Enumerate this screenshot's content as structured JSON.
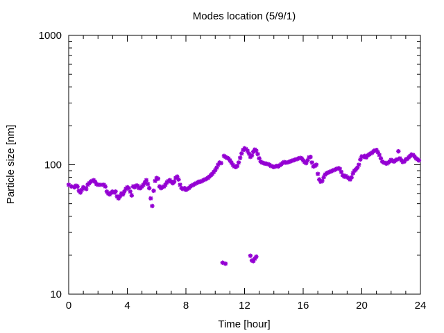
{
  "chart_data": {
    "type": "scatter",
    "title": "Modes location (5/9/1)",
    "xlabel": "Time [hour]",
    "ylabel": "Particle size [nm]",
    "xlim": [
      0,
      24
    ],
    "ylim": [
      10,
      1000
    ],
    "yscale": "log",
    "grid": false,
    "x_ticks": [
      0,
      4,
      8,
      12,
      16,
      20,
      24
    ],
    "x_tick_labels": [
      "0",
      "4",
      "8",
      "12",
      "16",
      "20",
      "24"
    ],
    "y_ticks": [
      10,
      100,
      1000
    ],
    "y_tick_labels": [
      "10",
      "100",
      "1000"
    ],
    "marker_color": "#9400d3",
    "points": [
      [
        0.0,
        70
      ],
      [
        0.2,
        68
      ],
      [
        0.4,
        67
      ],
      [
        0.5,
        69
      ],
      [
        0.6,
        68
      ],
      [
        0.7,
        63
      ],
      [
        0.8,
        61
      ],
      [
        0.9,
        64
      ],
      [
        1.0,
        67
      ],
      [
        1.1,
        66
      ],
      [
        1.2,
        65
      ],
      [
        1.3,
        70
      ],
      [
        1.4,
        72
      ],
      [
        1.5,
        74
      ],
      [
        1.6,
        75
      ],
      [
        1.7,
        76
      ],
      [
        1.8,
        74
      ],
      [
        1.9,
        71
      ],
      [
        2.0,
        70
      ],
      [
        2.2,
        70
      ],
      [
        2.4,
        70
      ],
      [
        2.5,
        68
      ],
      [
        2.6,
        62
      ],
      [
        2.7,
        60
      ],
      [
        2.8,
        59
      ],
      [
        2.9,
        61
      ],
      [
        3.0,
        62
      ],
      [
        3.1,
        61
      ],
      [
        3.2,
        62
      ],
      [
        3.3,
        57
      ],
      [
        3.4,
        55
      ],
      [
        3.5,
        57
      ],
      [
        3.6,
        60
      ],
      [
        3.7,
        59
      ],
      [
        3.8,
        62
      ],
      [
        3.9,
        65
      ],
      [
        4.0,
        67
      ],
      [
        4.1,
        66
      ],
      [
        4.2,
        62
      ],
      [
        4.3,
        58
      ],
      [
        4.4,
        68
      ],
      [
        4.5,
        67
      ],
      [
        4.6,
        69
      ],
      [
        4.7,
        69
      ],
      [
        4.8,
        66
      ],
      [
        4.9,
        66
      ],
      [
        5.0,
        68
      ],
      [
        5.1,
        70
      ],
      [
        5.2,
        73
      ],
      [
        5.3,
        76
      ],
      [
        5.4,
        71
      ],
      [
        5.5,
        66
      ],
      [
        5.6,
        55
      ],
      [
        5.7,
        48
      ],
      [
        5.8,
        63
      ],
      [
        5.9,
        75
      ],
      [
        6.0,
        79
      ],
      [
        6.1,
        78
      ],
      [
        6.2,
        68
      ],
      [
        6.3,
        66
      ],
      [
        6.4,
        67
      ],
      [
        6.5,
        68
      ],
      [
        6.6,
        70
      ],
      [
        6.7,
        73
      ],
      [
        6.8,
        75
      ],
      [
        6.9,
        76
      ],
      [
        7.0,
        74
      ],
      [
        7.1,
        72
      ],
      [
        7.2,
        74
      ],
      [
        7.3,
        79
      ],
      [
        7.4,
        81
      ],
      [
        7.5,
        77
      ],
      [
        7.6,
        70
      ],
      [
        7.7,
        66
      ],
      [
        7.8,
        65
      ],
      [
        7.9,
        66
      ],
      [
        8.0,
        64
      ],
      [
        8.1,
        65
      ],
      [
        8.2,
        66
      ],
      [
        8.3,
        68
      ],
      [
        8.4,
        69
      ],
      [
        8.5,
        70
      ],
      [
        8.6,
        71
      ],
      [
        8.7,
        72
      ],
      [
        8.8,
        73
      ],
      [
        8.9,
        74
      ],
      [
        9.0,
        74
      ],
      [
        9.1,
        75
      ],
      [
        9.2,
        76
      ],
      [
        9.3,
        77
      ],
      [
        9.4,
        78
      ],
      [
        9.5,
        79
      ],
      [
        9.6,
        81
      ],
      [
        9.7,
        83
      ],
      [
        9.8,
        85
      ],
      [
        9.9,
        88
      ],
      [
        10.0,
        91
      ],
      [
        10.1,
        95
      ],
      [
        10.2,
        100
      ],
      [
        10.3,
        104
      ],
      [
        10.4,
        103
      ],
      [
        10.6,
        117
      ],
      [
        10.7,
        115
      ],
      [
        10.8,
        113
      ],
      [
        10.9,
        112
      ],
      [
        11.0,
        108
      ],
      [
        11.1,
        104
      ],
      [
        11.2,
        100
      ],
      [
        11.3,
        97
      ],
      [
        11.4,
        96
      ],
      [
        11.5,
        98
      ],
      [
        11.6,
        104
      ],
      [
        11.7,
        113
      ],
      [
        11.8,
        122
      ],
      [
        11.9,
        130
      ],
      [
        12.0,
        134
      ],
      [
        12.1,
        132
      ],
      [
        12.2,
        128
      ],
      [
        12.3,
        122
      ],
      [
        12.4,
        115
      ],
      [
        12.5,
        118
      ],
      [
        12.6,
        126
      ],
      [
        12.7,
        131
      ],
      [
        12.8,
        128
      ],
      [
        12.9,
        121
      ],
      [
        13.0,
        112
      ],
      [
        13.1,
        106
      ],
      [
        13.2,
        104
      ],
      [
        13.3,
        103
      ],
      [
        13.4,
        102
      ],
      [
        13.5,
        102
      ],
      [
        13.6,
        101
      ],
      [
        13.7,
        100
      ],
      [
        13.8,
        98
      ],
      [
        13.9,
        97
      ],
      [
        14.0,
        96
      ],
      [
        14.1,
        97
      ],
      [
        14.2,
        98
      ],
      [
        14.3,
        97
      ],
      [
        14.4,
        99
      ],
      [
        14.5,
        101
      ],
      [
        14.6,
        103
      ],
      [
        14.7,
        105
      ],
      [
        14.8,
        104
      ],
      [
        14.9,
        104
      ],
      [
        15.0,
        105
      ],
      [
        15.1,
        106
      ],
      [
        15.2,
        107
      ],
      [
        15.3,
        108
      ],
      [
        15.4,
        109
      ],
      [
        15.5,
        110
      ],
      [
        15.6,
        111
      ],
      [
        15.7,
        112
      ],
      [
        15.8,
        113
      ],
      [
        15.9,
        112
      ],
      [
        16.0,
        108
      ],
      [
        16.1,
        105
      ],
      [
        16.2,
        103
      ],
      [
        16.3,
        108
      ],
      [
        16.4,
        114
      ],
      [
        16.5,
        115
      ],
      [
        16.6,
        104
      ],
      [
        16.7,
        97
      ],
      [
        16.8,
        98
      ],
      [
        16.9,
        100
      ],
      [
        17.0,
        85
      ],
      [
        17.1,
        77
      ],
      [
        17.2,
        74
      ],
      [
        17.3,
        75
      ],
      [
        17.4,
        80
      ],
      [
        17.5,
        84
      ],
      [
        17.6,
        86
      ],
      [
        17.7,
        87
      ],
      [
        17.8,
        88
      ],
      [
        17.9,
        89
      ],
      [
        18.0,
        90
      ],
      [
        18.1,
        91
      ],
      [
        18.2,
        92
      ],
      [
        18.3,
        93
      ],
      [
        18.4,
        94
      ],
      [
        18.5,
        93
      ],
      [
        18.6,
        88
      ],
      [
        18.7,
        83
      ],
      [
        18.8,
        81
      ],
      [
        18.9,
        82
      ],
      [
        19.0,
        80
      ],
      [
        19.1,
        79
      ],
      [
        19.2,
        77
      ],
      [
        19.3,
        80
      ],
      [
        19.4,
        86
      ],
      [
        19.5,
        90
      ],
      [
        19.6,
        92
      ],
      [
        19.7,
        95
      ],
      [
        19.8,
        100
      ],
      [
        19.9,
        110
      ],
      [
        20.0,
        116
      ],
      [
        20.1,
        115
      ],
      [
        20.2,
        117
      ],
      [
        20.3,
        114
      ],
      [
        20.4,
        118
      ],
      [
        20.5,
        120
      ],
      [
        20.6,
        122
      ],
      [
        20.7,
        124
      ],
      [
        20.8,
        127
      ],
      [
        20.9,
        129
      ],
      [
        21.0,
        130
      ],
      [
        21.1,
        125
      ],
      [
        21.2,
        119
      ],
      [
        21.3,
        112
      ],
      [
        21.4,
        106
      ],
      [
        21.5,
        104
      ],
      [
        21.6,
        103
      ],
      [
        21.7,
        102
      ],
      [
        21.8,
        104
      ],
      [
        21.9,
        106
      ],
      [
        22.0,
        109
      ],
      [
        22.1,
        107
      ],
      [
        22.2,
        106
      ],
      [
        22.3,
        108
      ],
      [
        22.4,
        110
      ],
      [
        22.5,
        127
      ],
      [
        22.6,
        112
      ],
      [
        22.7,
        108
      ],
      [
        22.8,
        105
      ],
      [
        22.9,
        106
      ],
      [
        23.0,
        110
      ],
      [
        23.1,
        111
      ],
      [
        23.2,
        114
      ],
      [
        23.3,
        117
      ],
      [
        23.4,
        120
      ],
      [
        23.5,
        119
      ],
      [
        23.6,
        116
      ],
      [
        23.7,
        112
      ],
      [
        23.8,
        110
      ],
      [
        23.9,
        108
      ],
      [
        10.5,
        17.5
      ],
      [
        10.7,
        17.2
      ],
      [
        12.4,
        19.8
      ],
      [
        12.5,
        18.2
      ],
      [
        12.6,
        18.0
      ],
      [
        12.7,
        18.8
      ],
      [
        12.8,
        19.5
      ]
    ]
  }
}
